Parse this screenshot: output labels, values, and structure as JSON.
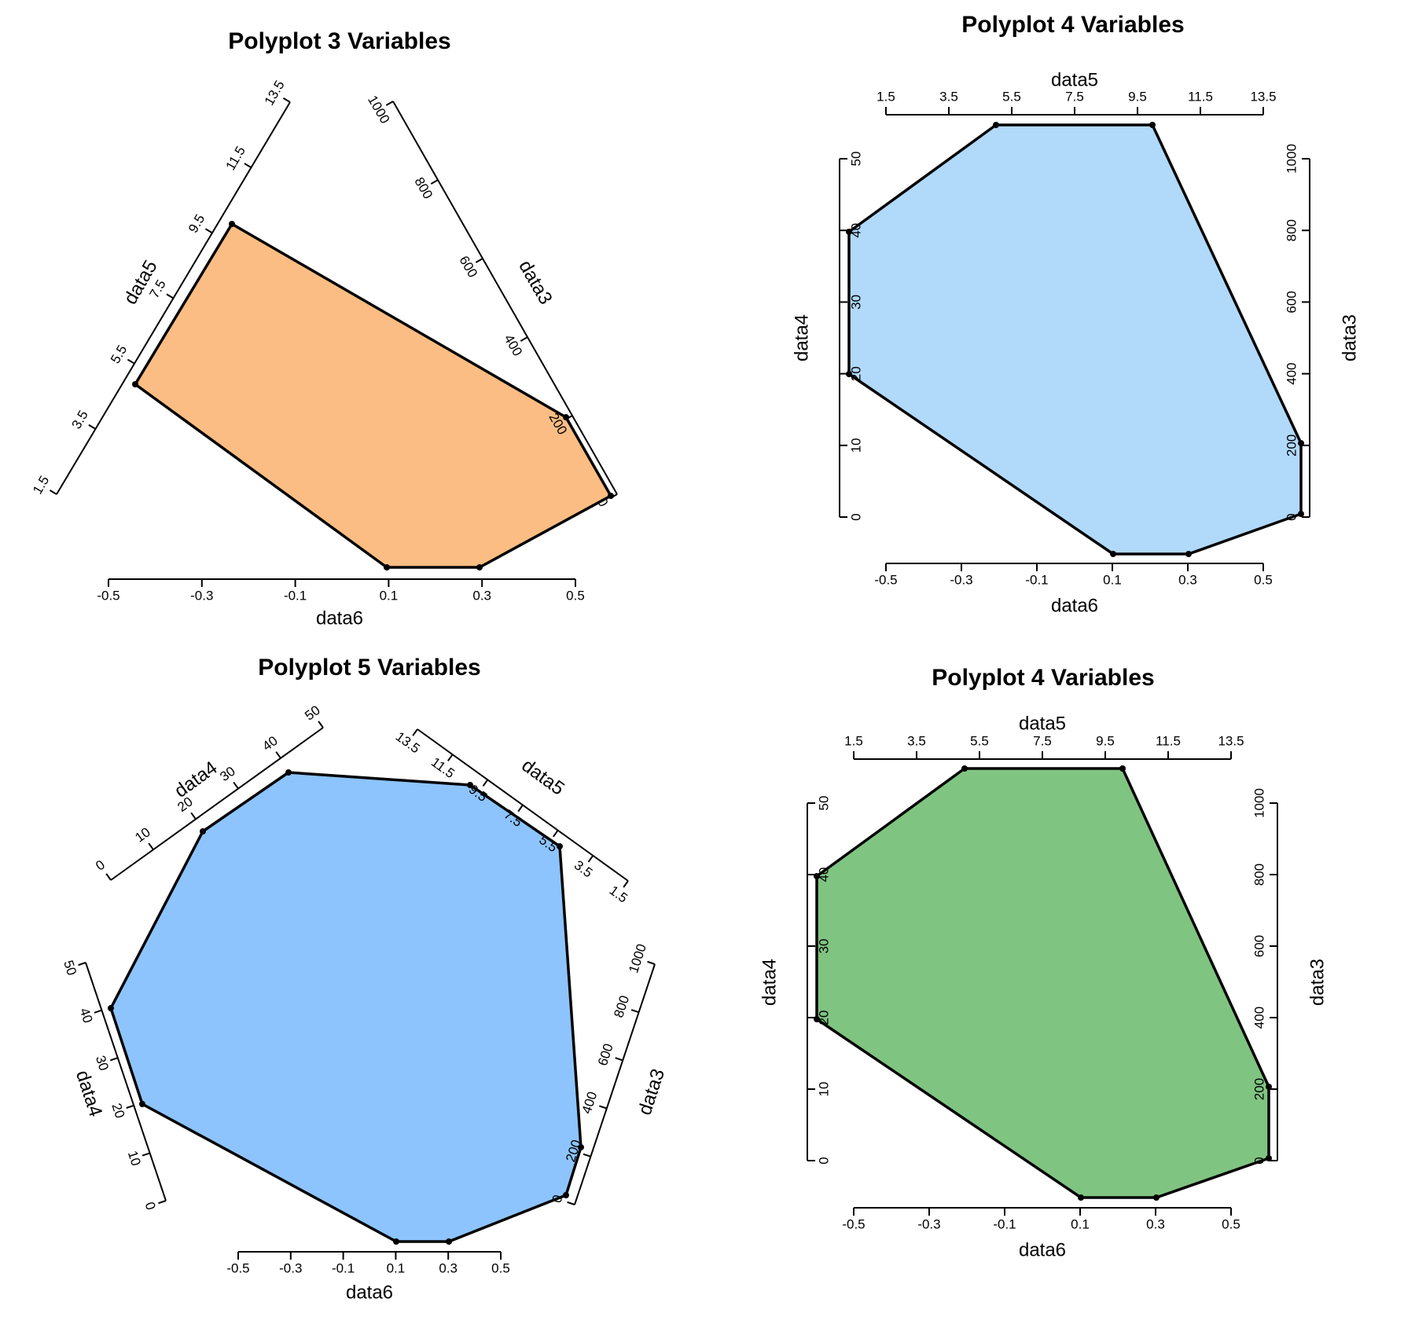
{
  "chart_data": [
    {
      "type": "polyplot",
      "title": "Polyplot 3 Variables",
      "fill": "#fbbd83",
      "axes": [
        {
          "name": "data6",
          "ticks": [
            "-0.5",
            "-0.3",
            "-0.1",
            "0.1",
            "0.3",
            "0.5"
          ]
        },
        {
          "name": "data3",
          "ticks": [
            "0",
            "200",
            "400",
            "600",
            "800",
            "1000"
          ]
        },
        {
          "name": "data5",
          "ticks": [
            "1.5",
            "3.5",
            "5.5",
            "7.5",
            "9.5",
            "11.5",
            "13.5"
          ]
        }
      ]
    },
    {
      "type": "polyplot",
      "title": "Polyplot 4 Variables",
      "fill": "#b1d9fa",
      "axes": [
        {
          "name": "data6",
          "ticks": [
            "-0.5",
            "-0.3",
            "-0.1",
            "0.1",
            "0.3",
            "0.5"
          ]
        },
        {
          "name": "data3",
          "ticks": [
            "0",
            "200",
            "400",
            "600",
            "800",
            "1000"
          ]
        },
        {
          "name": "data5",
          "ticks": [
            "1.5",
            "3.5",
            "5.5",
            "7.5",
            "9.5",
            "11.5",
            "13.5"
          ]
        },
        {
          "name": "data4",
          "ticks": [
            "0",
            "10",
            "20",
            "30",
            "40",
            "50"
          ]
        }
      ]
    },
    {
      "type": "polyplot",
      "title": "Polyplot 5 Variables",
      "fill": "#8dc4fd",
      "axes": [
        {
          "name": "data6",
          "ticks": [
            "-0.5",
            "-0.3",
            "-0.1",
            "0.1",
            "0.3",
            "0.5"
          ]
        },
        {
          "name": "data3",
          "ticks": [
            "0",
            "200",
            "400",
            "600",
            "800",
            "1000"
          ]
        },
        {
          "name": "data5",
          "ticks": [
            "1.5",
            "3.5",
            "5.5",
            "7.5",
            "9.5",
            "11.5",
            "13.5"
          ]
        },
        {
          "name": "data4",
          "ticks": [
            "0",
            "10",
            "20",
            "30",
            "40",
            "50"
          ]
        },
        {
          "name": "data4",
          "ticks": [
            "0",
            "10",
            "20",
            "30",
            "40",
            "50"
          ]
        }
      ]
    },
    {
      "type": "polyplot",
      "title": "Polyplot 4 Variables",
      "fill": "#80c482",
      "axes": [
        {
          "name": "data6",
          "ticks": [
            "-0.5",
            "-0.3",
            "-0.1",
            "0.1",
            "0.3",
            "0.5"
          ]
        },
        {
          "name": "data3",
          "ticks": [
            "0",
            "200",
            "400",
            "600",
            "800",
            "1000"
          ]
        },
        {
          "name": "data5",
          "ticks": [
            "1.5",
            "3.5",
            "5.5",
            "7.5",
            "9.5",
            "11.5",
            "13.5"
          ]
        },
        {
          "name": "data4",
          "ticks": [
            "0",
            "10",
            "20",
            "30",
            "40",
            "50"
          ]
        }
      ]
    }
  ]
}
